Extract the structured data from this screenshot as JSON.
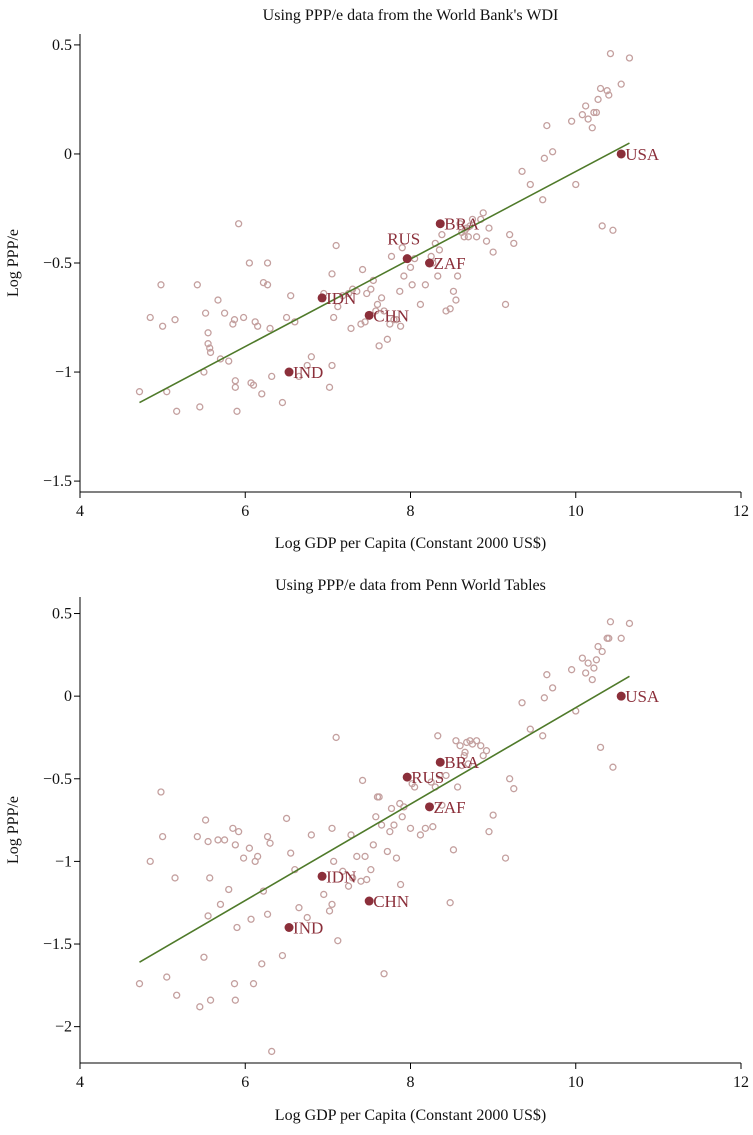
{
  "chart_data": [
    {
      "type": "scatter",
      "title": "Using PPP/e data from the World Bank's WDI",
      "xlabel": "Log GDP per Capita (Constant 2000 US$)",
      "ylabel": "Log PPP/e",
      "xlim": [
        4,
        12
      ],
      "ylim": [
        -1.55,
        0.55
      ],
      "xticks": [
        4,
        6,
        8,
        10,
        12
      ],
      "yticks": [
        -1.5,
        -1,
        -0.5,
        0,
        0.5
      ],
      "xtick_labels": [
        "4",
        "6",
        "8",
        "10",
        "12"
      ],
      "ytick_labels": [
        "−1.5",
        "−1",
        "−0.5",
        "0",
        "0.5"
      ],
      "grid": false,
      "colors": {
        "points": "#c4a09f",
        "highlight": "#8b2f3a",
        "fit_line": "#4f7a2a"
      },
      "fit_line": {
        "x": [
          4.72,
          10.65
        ],
        "y": [
          -1.14,
          0.05
        ]
      },
      "highlighted": [
        {
          "label": "USA",
          "x": 10.55,
          "y": 0.0
        },
        {
          "label": "BRA",
          "x": 8.36,
          "y": -0.32
        },
        {
          "label": "RUS",
          "x": 7.96,
          "y": -0.48
        },
        {
          "label": "ZAF",
          "x": 8.23,
          "y": -0.5
        },
        {
          "label": "IDN",
          "x": 6.93,
          "y": -0.66
        },
        {
          "label": "CHN",
          "x": 7.5,
          "y": -0.74
        },
        {
          "label": "IND",
          "x": 6.53,
          "y": -1.0
        }
      ],
      "points": [
        [
          4.72,
          -1.09
        ],
        [
          4.85,
          -0.75
        ],
        [
          4.98,
          -0.6
        ],
        [
          5.0,
          -0.79
        ],
        [
          5.05,
          -1.09
        ],
        [
          5.15,
          -0.76
        ],
        [
          5.17,
          -1.18
        ],
        [
          5.42,
          -0.6
        ],
        [
          5.45,
          -1.16
        ],
        [
          5.5,
          -1.0
        ],
        [
          5.52,
          -0.73
        ],
        [
          5.55,
          -0.87
        ],
        [
          5.55,
          -0.82
        ],
        [
          5.57,
          -0.89
        ],
        [
          5.58,
          -0.91
        ],
        [
          5.67,
          -0.67
        ],
        [
          5.7,
          -0.94
        ],
        [
          5.75,
          -0.73
        ],
        [
          5.8,
          -0.95
        ],
        [
          5.85,
          -0.78
        ],
        [
          5.87,
          -0.76
        ],
        [
          5.88,
          -1.04
        ],
        [
          5.88,
          -1.07
        ],
        [
          5.9,
          -1.18
        ],
        [
          5.92,
          -0.32
        ],
        [
          5.98,
          -0.75
        ],
        [
          6.05,
          -0.5
        ],
        [
          6.07,
          -1.05
        ],
        [
          6.1,
          -1.06
        ],
        [
          6.12,
          -0.77
        ],
        [
          6.15,
          -0.79
        ],
        [
          6.2,
          -1.1
        ],
        [
          6.22,
          -0.59
        ],
        [
          6.27,
          -0.6
        ],
        [
          6.27,
          -0.5
        ],
        [
          6.3,
          -0.8
        ],
        [
          6.32,
          -1.02
        ],
        [
          6.45,
          -1.14
        ],
        [
          6.5,
          -0.75
        ],
        [
          6.55,
          -0.65
        ],
        [
          6.6,
          -0.77
        ],
        [
          6.65,
          -1.02
        ],
        [
          6.75,
          -0.97
        ],
        [
          6.8,
          -0.93
        ],
        [
          6.95,
          -0.64
        ],
        [
          7.02,
          -1.07
        ],
        [
          7.05,
          -0.97
        ],
        [
          7.05,
          -0.55
        ],
        [
          7.07,
          -0.75
        ],
        [
          7.1,
          -0.42
        ],
        [
          7.12,
          -0.7
        ],
        [
          7.18,
          -0.65
        ],
        [
          7.25,
          -0.64
        ],
        [
          7.28,
          -0.8
        ],
        [
          7.3,
          -0.62
        ],
        [
          7.35,
          -0.63
        ],
        [
          7.4,
          -0.78
        ],
        [
          7.42,
          -0.53
        ],
        [
          7.45,
          -0.77
        ],
        [
          7.47,
          -0.64
        ],
        [
          7.52,
          -0.62
        ],
        [
          7.55,
          -0.58
        ],
        [
          7.58,
          -0.72
        ],
        [
          7.6,
          -0.69
        ],
        [
          7.62,
          -0.88
        ],
        [
          7.65,
          -0.66
        ],
        [
          7.68,
          -0.72
        ],
        [
          7.72,
          -0.85
        ],
        [
          7.75,
          -0.78
        ],
        [
          7.77,
          -0.47
        ],
        [
          7.8,
          -0.76
        ],
        [
          7.83,
          -0.76
        ],
        [
          7.87,
          -0.63
        ],
        [
          7.88,
          -0.79
        ],
        [
          7.9,
          -0.43
        ],
        [
          7.92,
          -0.56
        ],
        [
          8.0,
          -0.52
        ],
        [
          8.02,
          -0.6
        ],
        [
          8.05,
          -0.48
        ],
        [
          8.12,
          -0.69
        ],
        [
          8.18,
          -0.6
        ],
        [
          8.25,
          -0.47
        ],
        [
          8.27,
          -0.5
        ],
        [
          8.3,
          -0.41
        ],
        [
          8.33,
          -0.56
        ],
        [
          8.35,
          -0.44
        ],
        [
          8.38,
          -0.37
        ],
        [
          8.43,
          -0.72
        ],
        [
          8.48,
          -0.71
        ],
        [
          8.52,
          -0.63
        ],
        [
          8.55,
          -0.67
        ],
        [
          8.57,
          -0.56
        ],
        [
          8.6,
          -0.32
        ],
        [
          8.62,
          -0.36
        ],
        [
          8.65,
          -0.38
        ],
        [
          8.66,
          -0.35
        ],
        [
          8.68,
          -0.34
        ],
        [
          8.7,
          -0.38
        ],
        [
          8.72,
          -0.33
        ],
        [
          8.75,
          -0.3
        ],
        [
          8.8,
          -0.38
        ],
        [
          8.85,
          -0.3
        ],
        [
          8.88,
          -0.27
        ],
        [
          8.92,
          -0.4
        ],
        [
          8.95,
          -0.34
        ],
        [
          9.0,
          -0.45
        ],
        [
          9.15,
          -0.69
        ],
        [
          9.2,
          -0.37
        ],
        [
          9.25,
          -0.41
        ],
        [
          9.35,
          -0.08
        ],
        [
          9.45,
          -0.14
        ],
        [
          9.6,
          -0.21
        ],
        [
          9.62,
          -0.02
        ],
        [
          9.65,
          0.13
        ],
        [
          9.72,
          0.01
        ],
        [
          9.95,
          0.15
        ],
        [
          10.0,
          -0.14
        ],
        [
          10.08,
          0.18
        ],
        [
          10.12,
          0.22
        ],
        [
          10.15,
          0.16
        ],
        [
          10.2,
          0.12
        ],
        [
          10.22,
          0.19
        ],
        [
          10.25,
          0.19
        ],
        [
          10.27,
          0.25
        ],
        [
          10.3,
          0.3
        ],
        [
          10.32,
          -0.33
        ],
        [
          10.38,
          0.29
        ],
        [
          10.4,
          0.27
        ],
        [
          10.42,
          0.46
        ],
        [
          10.45,
          -0.35
        ],
        [
          10.55,
          0.32
        ],
        [
          10.65,
          0.44
        ]
      ]
    },
    {
      "type": "scatter",
      "title": "Using PPP/e data from Penn World Tables",
      "xlabel": "Log GDP per Capita (Constant 2000 US$)",
      "ylabel": "Log PPP/e",
      "xlim": [
        4,
        12
      ],
      "ylim": [
        -2.22,
        0.6
      ],
      "xticks": [
        4,
        6,
        8,
        10,
        12
      ],
      "yticks": [
        -2,
        -1.5,
        -1,
        -0.5,
        0,
        0.5
      ],
      "xtick_labels": [
        "4",
        "6",
        "8",
        "10",
        "12"
      ],
      "ytick_labels": [
        "−2",
        "−1.5",
        "−1",
        "−0.5",
        "0",
        "0.5"
      ],
      "grid": false,
      "colors": {
        "points": "#c4a09f",
        "highlight": "#8b2f3a",
        "fit_line": "#4f7a2a"
      },
      "fit_line": {
        "x": [
          4.72,
          10.65
        ],
        "y": [
          -1.61,
          0.12
        ]
      },
      "highlighted": [
        {
          "label": "USA",
          "x": 10.55,
          "y": 0.0
        },
        {
          "label": "BRA",
          "x": 8.36,
          "y": -0.4
        },
        {
          "label": "RUS",
          "x": 7.96,
          "y": -0.49
        },
        {
          "label": "ZAF",
          "x": 8.23,
          "y": -0.67
        },
        {
          "label": "IDN",
          "x": 6.93,
          "y": -1.09
        },
        {
          "label": "CHN",
          "x": 7.5,
          "y": -1.24
        },
        {
          "label": "IND",
          "x": 6.53,
          "y": -1.4
        }
      ],
      "points": [
        [
          4.72,
          -1.74
        ],
        [
          4.85,
          -1.0
        ],
        [
          4.98,
          -0.58
        ],
        [
          5.0,
          -0.85
        ],
        [
          5.05,
          -1.7
        ],
        [
          5.15,
          -1.1
        ],
        [
          5.17,
          -1.81
        ],
        [
          5.42,
          -0.85
        ],
        [
          5.45,
          -1.88
        ],
        [
          5.5,
          -1.58
        ],
        [
          5.52,
          -0.75
        ],
        [
          5.55,
          -1.33
        ],
        [
          5.55,
          -0.88
        ],
        [
          5.57,
          -1.1
        ],
        [
          5.58,
          -1.84
        ],
        [
          5.67,
          -0.87
        ],
        [
          5.7,
          -1.26
        ],
        [
          5.75,
          -0.87
        ],
        [
          5.8,
          -1.17
        ],
        [
          5.85,
          -0.8
        ],
        [
          5.87,
          -1.74
        ],
        [
          5.88,
          -0.9
        ],
        [
          5.88,
          -1.84
        ],
        [
          5.9,
          -1.4
        ],
        [
          5.92,
          -0.82
        ],
        [
          5.98,
          -0.98
        ],
        [
          6.05,
          -0.92
        ],
        [
          6.07,
          -1.35
        ],
        [
          6.1,
          -1.74
        ],
        [
          6.12,
          -1.0
        ],
        [
          6.15,
          -0.97
        ],
        [
          6.2,
          -1.62
        ],
        [
          6.22,
          -1.18
        ],
        [
          6.27,
          -0.85
        ],
        [
          6.27,
          -1.32
        ],
        [
          6.3,
          -0.89
        ],
        [
          6.32,
          -2.15
        ],
        [
          6.45,
          -1.57
        ],
        [
          6.5,
          -0.74
        ],
        [
          6.55,
          -0.95
        ],
        [
          6.6,
          -1.05
        ],
        [
          6.65,
          -1.28
        ],
        [
          6.75,
          -1.34
        ],
        [
          6.8,
          -0.84
        ],
        [
          6.95,
          -1.2
        ],
        [
          7.02,
          -1.3
        ],
        [
          7.05,
          -1.26
        ],
        [
          7.05,
          -0.8
        ],
        [
          7.07,
          -1.0
        ],
        [
          7.1,
          -0.25
        ],
        [
          7.12,
          -1.48
        ],
        [
          7.18,
          -1.06
        ],
        [
          7.25,
          -1.15
        ],
        [
          7.28,
          -0.84
        ],
        [
          7.3,
          -1.1
        ],
        [
          7.35,
          -0.97
        ],
        [
          7.4,
          -1.12
        ],
        [
          7.42,
          -0.51
        ],
        [
          7.45,
          -0.97
        ],
        [
          7.47,
          -1.11
        ],
        [
          7.52,
          -1.05
        ],
        [
          7.55,
          -0.9
        ],
        [
          7.58,
          -0.73
        ],
        [
          7.6,
          -0.61
        ],
        [
          7.62,
          -0.61
        ],
        [
          7.65,
          -0.78
        ],
        [
          7.68,
          -1.68
        ],
        [
          7.72,
          -0.94
        ],
        [
          7.75,
          -0.82
        ],
        [
          7.77,
          -0.68
        ],
        [
          7.8,
          -0.78
        ],
        [
          7.83,
          -0.98
        ],
        [
          7.87,
          -0.65
        ],
        [
          7.88,
          -1.14
        ],
        [
          7.9,
          -0.73
        ],
        [
          7.92,
          -0.67
        ],
        [
          8.0,
          -0.8
        ],
        [
          8.02,
          -0.53
        ],
        [
          8.05,
          -0.55
        ],
        [
          8.12,
          -0.84
        ],
        [
          8.18,
          -0.8
        ],
        [
          8.25,
          -0.52
        ],
        [
          8.27,
          -0.79
        ],
        [
          8.3,
          -0.55
        ],
        [
          8.33,
          -0.24
        ],
        [
          8.35,
          -0.48
        ],
        [
          8.38,
          -0.66
        ],
        [
          8.43,
          -0.48
        ],
        [
          8.48,
          -1.25
        ],
        [
          8.52,
          -0.93
        ],
        [
          8.55,
          -0.27
        ],
        [
          8.57,
          -0.55
        ],
        [
          8.6,
          -0.3
        ],
        [
          8.62,
          -0.42
        ],
        [
          8.65,
          -0.36
        ],
        [
          8.66,
          -0.34
        ],
        [
          8.68,
          -0.28
        ],
        [
          8.7,
          -0.41
        ],
        [
          8.72,
          -0.27
        ],
        [
          8.75,
          -0.29
        ],
        [
          8.8,
          -0.27
        ],
        [
          8.85,
          -0.3
        ],
        [
          8.88,
          -0.36
        ],
        [
          8.92,
          -0.33
        ],
        [
          8.95,
          -0.82
        ],
        [
          9.0,
          -0.72
        ],
        [
          9.15,
          -0.98
        ],
        [
          9.2,
          -0.5
        ],
        [
          9.25,
          -0.56
        ],
        [
          9.35,
          -0.04
        ],
        [
          9.45,
          -0.2
        ],
        [
          9.6,
          -0.24
        ],
        [
          9.62,
          -0.01
        ],
        [
          9.65,
          0.13
        ],
        [
          9.72,
          0.05
        ],
        [
          9.95,
          0.16
        ],
        [
          10.0,
          -0.09
        ],
        [
          10.08,
          0.23
        ],
        [
          10.12,
          0.14
        ],
        [
          10.15,
          0.2
        ],
        [
          10.2,
          0.1
        ],
        [
          10.22,
          0.17
        ],
        [
          10.25,
          0.22
        ],
        [
          10.27,
          0.3
        ],
        [
          10.3,
          -0.31
        ],
        [
          10.32,
          0.27
        ],
        [
          10.38,
          0.35
        ],
        [
          10.4,
          0.35
        ],
        [
          10.42,
          0.45
        ],
        [
          10.45,
          -0.43
        ],
        [
          10.55,
          0.35
        ],
        [
          10.65,
          0.44
        ]
      ]
    }
  ]
}
